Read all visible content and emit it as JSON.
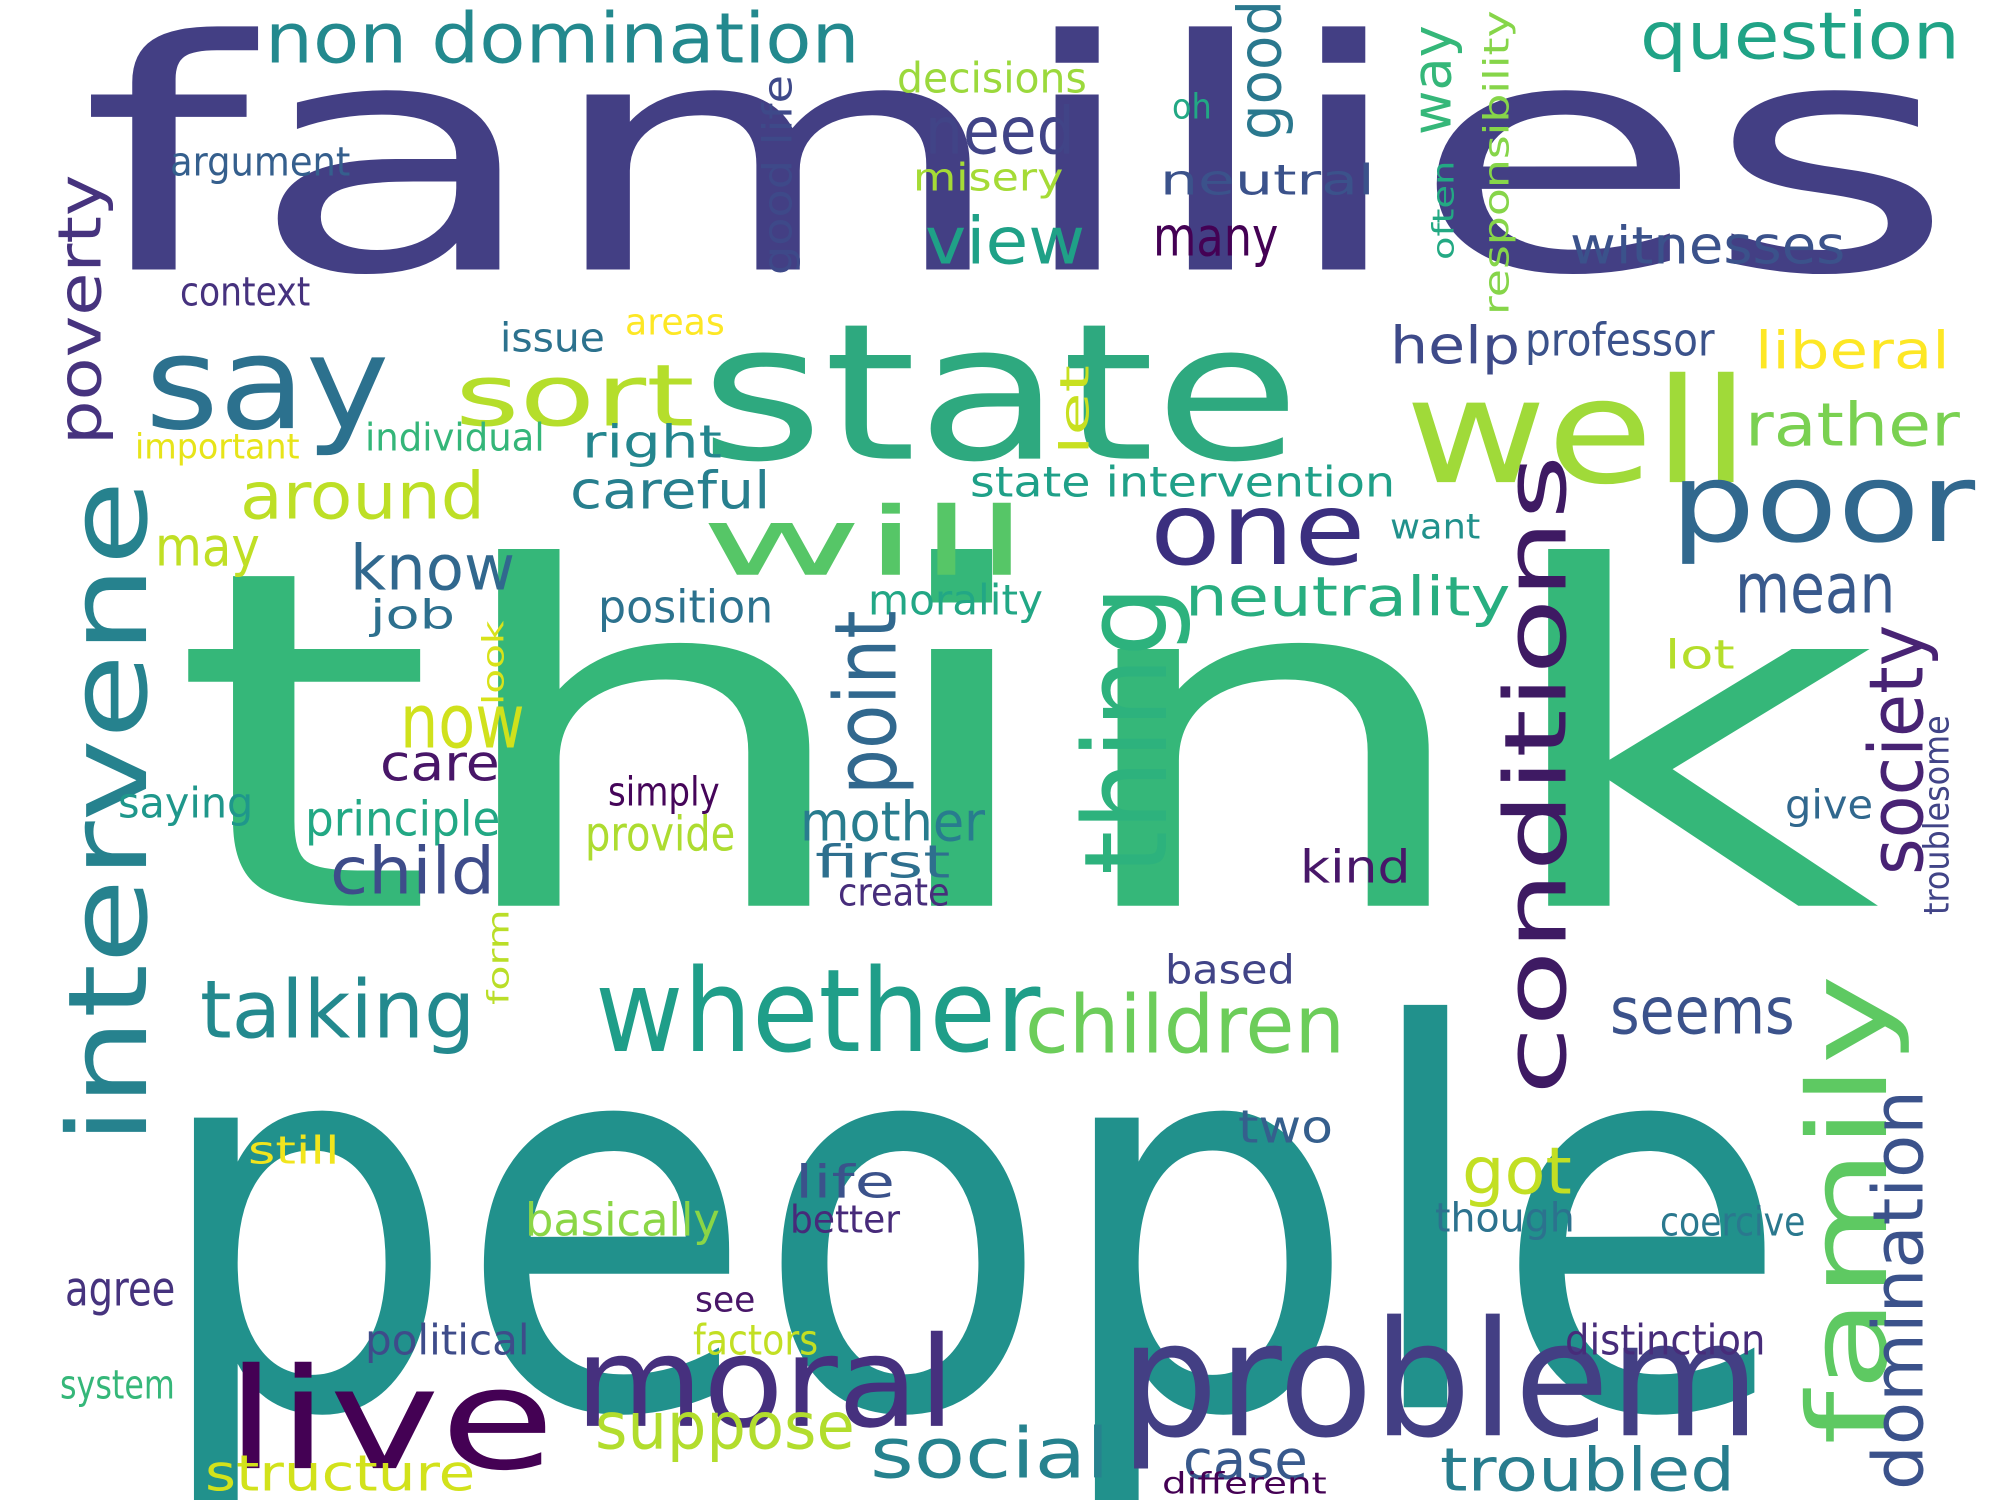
{
  "words": [
    {
      "text": "families",
      "color": "#433f84"
    },
    {
      "text": "think",
      "color": "#35b779"
    },
    {
      "text": "people",
      "color": "#21918c"
    },
    {
      "text": "state",
      "color": "#2ea97f"
    },
    {
      "text": "say",
      "color": "#2c718e"
    },
    {
      "text": "well",
      "color": "#a0da39"
    },
    {
      "text": "will",
      "color": "#56c667"
    },
    {
      "text": "one",
      "color": "#3b2f7f"
    },
    {
      "text": "poor",
      "color": "#31688e"
    },
    {
      "text": "intervene",
      "color": "#26828e"
    },
    {
      "text": "sort",
      "color": "#b5de2b"
    },
    {
      "text": "conditions",
      "color": "#3e1a63"
    },
    {
      "text": "thing",
      "color": "#2db27d"
    },
    {
      "text": "whether",
      "color": "#1f9e89"
    },
    {
      "text": "problem",
      "color": "#433f84"
    },
    {
      "text": "moral",
      "color": "#46307e"
    },
    {
      "text": "live",
      "color": "#440154"
    },
    {
      "text": "family",
      "color": "#5ec962"
    },
    {
      "text": "non domination",
      "color": "#23898e"
    },
    {
      "text": "question",
      "color": "#20a386"
    },
    {
      "text": "way",
      "color": "#35b779"
    },
    {
      "text": "good",
      "color": "#2a788e"
    },
    {
      "text": "responsibility",
      "color": "#86d549"
    },
    {
      "text": "decisions",
      "color": "#9bd93c"
    },
    {
      "text": "oh",
      "color": "#22a884"
    },
    {
      "text": "good life",
      "color": "#3e4989"
    },
    {
      "text": "often",
      "color": "#23a983"
    },
    {
      "text": "need",
      "color": "#414487"
    },
    {
      "text": "argument",
      "color": "#355f8d"
    },
    {
      "text": "misery",
      "color": "#a5db36"
    },
    {
      "text": "neutral",
      "color": "#3b528b"
    },
    {
      "text": "view",
      "color": "#1fa187"
    },
    {
      "text": "many",
      "color": "#440154"
    },
    {
      "text": "witnesses",
      "color": "#3b528b"
    },
    {
      "text": "poverty",
      "color": "#46337e"
    },
    {
      "text": "context",
      "color": "#46327e"
    },
    {
      "text": "issue",
      "color": "#2c728e"
    },
    {
      "text": "areas",
      "color": "#fde725"
    },
    {
      "text": "help",
      "color": "#3e4a89"
    },
    {
      "text": "professor",
      "color": "#3b528b"
    },
    {
      "text": "liberal",
      "color": "#fde725"
    },
    {
      "text": "rather",
      "color": "#7ad151"
    },
    {
      "text": "let",
      "color": "#c8e020"
    },
    {
      "text": "important",
      "color": "#e7e419"
    },
    {
      "text": "individual",
      "color": "#34b679"
    },
    {
      "text": "right",
      "color": "#24868e"
    },
    {
      "text": "state intervention",
      "color": "#1fa088"
    },
    {
      "text": "around",
      "color": "#bddf26"
    },
    {
      "text": "careful",
      "color": "#277f8e"
    },
    {
      "text": "want",
      "color": "#21918c"
    },
    {
      "text": "may",
      "color": "#c0df25"
    },
    {
      "text": "know",
      "color": "#31688e"
    },
    {
      "text": "mean",
      "color": "#38598c"
    },
    {
      "text": "neutrality",
      "color": "#28ae80"
    },
    {
      "text": "job",
      "color": "#2d708e"
    },
    {
      "text": "position",
      "color": "#2c728e"
    },
    {
      "text": "morality",
      "color": "#22a785"
    },
    {
      "text": "look",
      "color": "#d8e219"
    },
    {
      "text": "lot",
      "color": "#b5de2b"
    },
    {
      "text": "society",
      "color": "#482374"
    },
    {
      "text": "point",
      "color": "#31688e"
    },
    {
      "text": "now",
      "color": "#d0e11c"
    },
    {
      "text": "care",
      "color": "#481668"
    },
    {
      "text": "troublesome",
      "color": "#414487"
    },
    {
      "text": "simply",
      "color": "#450559"
    },
    {
      "text": "saying",
      "color": "#1f978b"
    },
    {
      "text": "principle",
      "color": "#22a884"
    },
    {
      "text": "provide",
      "color": "#addc30"
    },
    {
      "text": "mother",
      "color": "#287c8e"
    },
    {
      "text": "give",
      "color": "#31688e"
    },
    {
      "text": "child",
      "color": "#3e4c8a"
    },
    {
      "text": "first",
      "color": "#2e6f8e"
    },
    {
      "text": "kind",
      "color": "#481769"
    },
    {
      "text": "create",
      "color": "#472d7b"
    },
    {
      "text": "talking",
      "color": "#23898e"
    },
    {
      "text": "form",
      "color": "#bade28"
    },
    {
      "text": "children",
      "color": "#6ccd5a"
    },
    {
      "text": "based",
      "color": "#414487"
    },
    {
      "text": "seems",
      "color": "#3b528b"
    },
    {
      "text": "two",
      "color": "#355f8d"
    },
    {
      "text": "still",
      "color": "#f1e51d"
    },
    {
      "text": "got",
      "color": "#c2df23"
    },
    {
      "text": "domination",
      "color": "#3b528b"
    },
    {
      "text": "life",
      "color": "#3b528b"
    },
    {
      "text": "basically",
      "color": "#8bd646"
    },
    {
      "text": "better",
      "color": "#472a7a"
    },
    {
      "text": "though",
      "color": "#2c728e"
    },
    {
      "text": "coercive",
      "color": "#2a788e"
    },
    {
      "text": "agree",
      "color": "#46337e"
    },
    {
      "text": "see",
      "color": "#481668"
    },
    {
      "text": "political",
      "color": "#3e4c8a"
    },
    {
      "text": "factors",
      "color": "#c2df23"
    },
    {
      "text": "distinction",
      "color": "#472c7a"
    },
    {
      "text": "system",
      "color": "#35b779"
    },
    {
      "text": "suppose",
      "color": "#b2dd2d"
    },
    {
      "text": "social",
      "color": "#26828e"
    },
    {
      "text": "case",
      "color": "#38598c"
    },
    {
      "text": "troubled",
      "color": "#287d8e"
    },
    {
      "text": "structure",
      "color": "#d2e21b"
    },
    {
      "text": "different",
      "color": "#440154"
    }
  ]
}
